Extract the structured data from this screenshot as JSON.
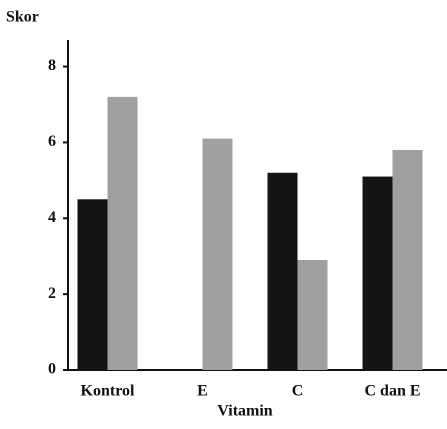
{
  "chart_data": {
    "type": "bar",
    "ylabel": "Skor",
    "xlabel": "Vitamin",
    "categories": [
      "Kontrol",
      "E",
      "C",
      "C dan E"
    ],
    "series": [
      {
        "color": "#141414",
        "values": [
          4.5,
          null,
          5.2,
          5.1
        ]
      },
      {
        "color": "#a0a0a0",
        "values": [
          7.2,
          6.1,
          2.9,
          5.8
        ]
      }
    ],
    "ylim": [
      0,
      8.7
    ],
    "yticks": [
      0,
      2,
      4,
      6,
      8
    ],
    "grid": false
  }
}
